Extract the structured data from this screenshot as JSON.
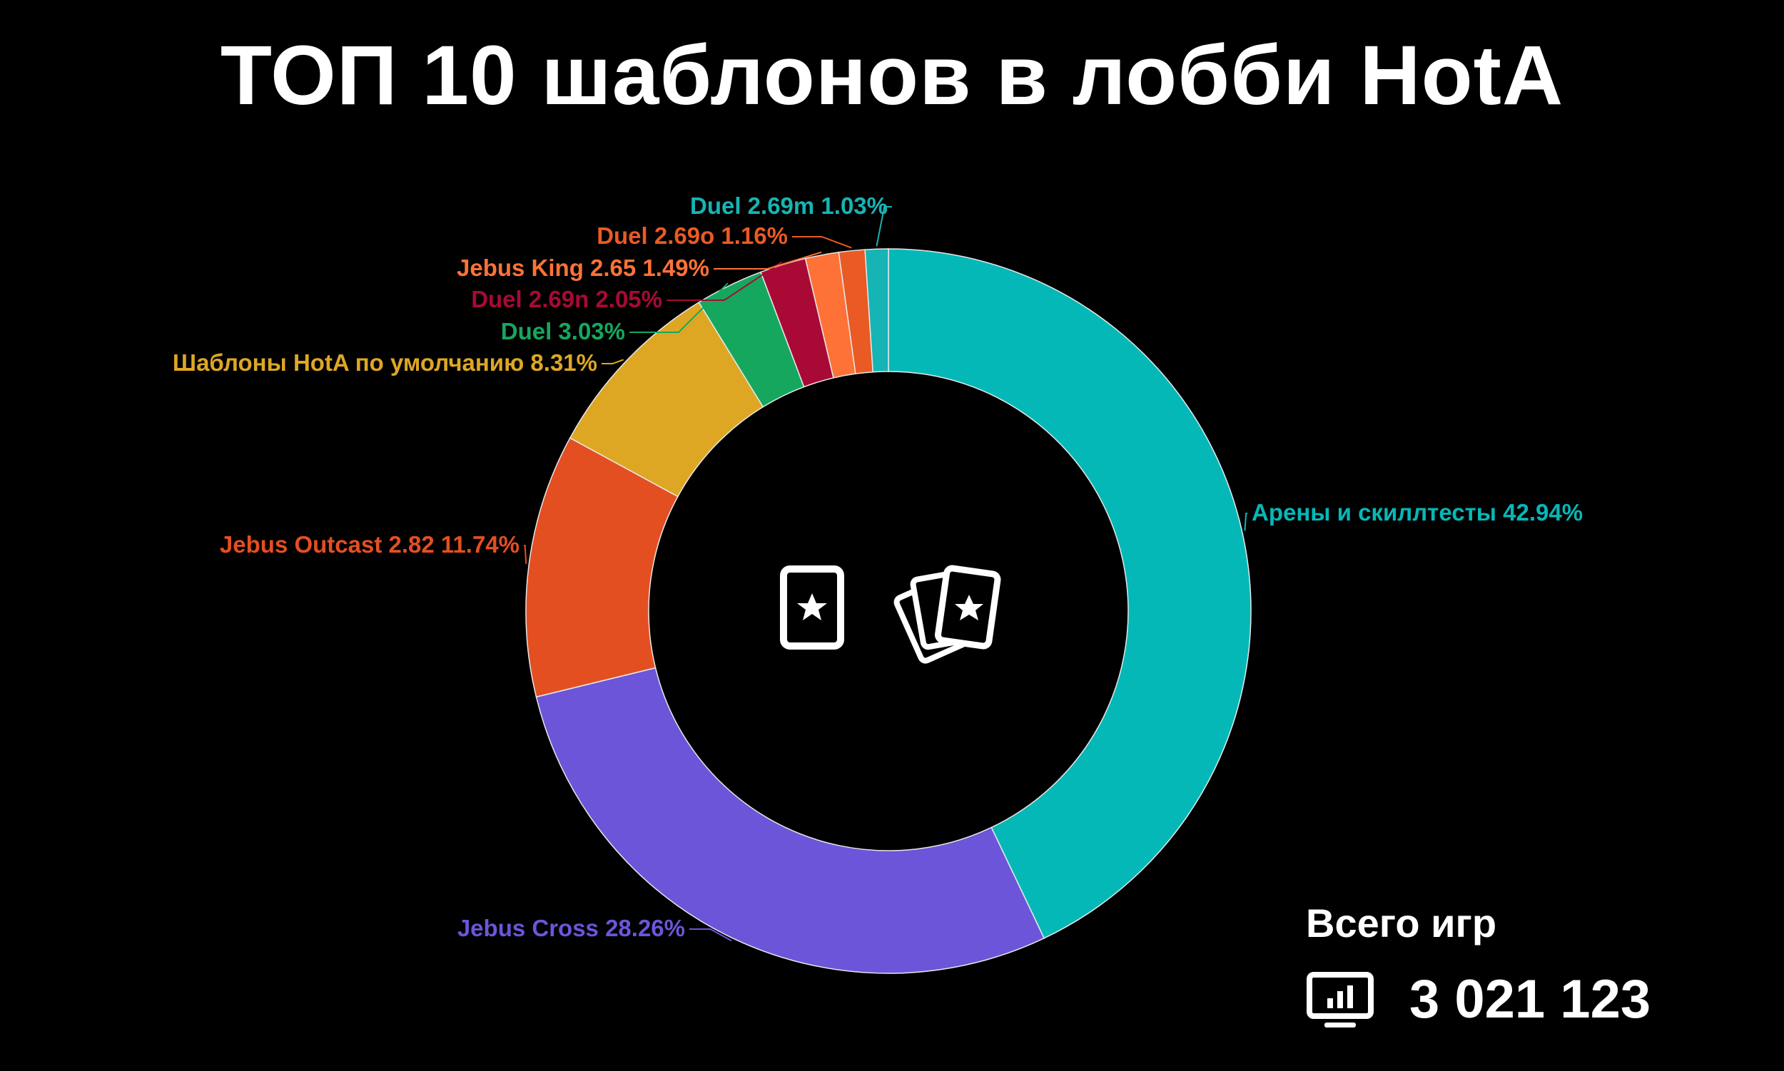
{
  "title": "ТОП 10 шаблонов в лобби HotA",
  "total": {
    "label": "Всего игр",
    "value": "3 021 123",
    "icon": "monitor-stats-icon"
  },
  "center_icons": [
    "single-card-star-icon",
    "card-fan-star-icon"
  ],
  "chart_data": {
    "type": "pie",
    "title": "ТОП 10 шаблонов в лобби HotA",
    "donut": true,
    "slices": [
      {
        "name": "Арены и скиллтесты",
        "value": 42.94,
        "label": "Арены и скиллтесты 42.94%",
        "color": "#05b8b8"
      },
      {
        "name": "Jebus Cross",
        "value": 28.26,
        "label": "Jebus Cross 28.26%",
        "color": "#6c55d9"
      },
      {
        "name": "Jebus Outcast 2.82",
        "value": 11.74,
        "label": "Jebus Outcast 2.82 11.74%",
        "color": "#e44f21"
      },
      {
        "name": "Шаблоны HotA по умолчанию",
        "value": 8.31,
        "label": "Шаблоны HotA по умолчанию 8.31%",
        "color": "#dea723"
      },
      {
        "name": "Duel",
        "value": 3.03,
        "label": "Duel 3.03%",
        "color": "#16a75f"
      },
      {
        "name": "Duel 2.69n",
        "value": 2.05,
        "label": "Duel 2.69n 2.05%",
        "color": "#a80a35"
      },
      {
        "name": "Jebus King 2.65",
        "value": 1.49,
        "label": "Jebus King 2.65 1.49%",
        "color": "#ff7237"
      },
      {
        "name": "Duel 2.69o",
        "value": 1.16,
        "label": "Duel 2.69o 1.16%",
        "color": "#ea5a24"
      },
      {
        "name": "Duel 2.69m",
        "value": 1.03,
        "label": "Duel 2.69m 1.03%",
        "color": "#16b4b4"
      }
    ]
  }
}
